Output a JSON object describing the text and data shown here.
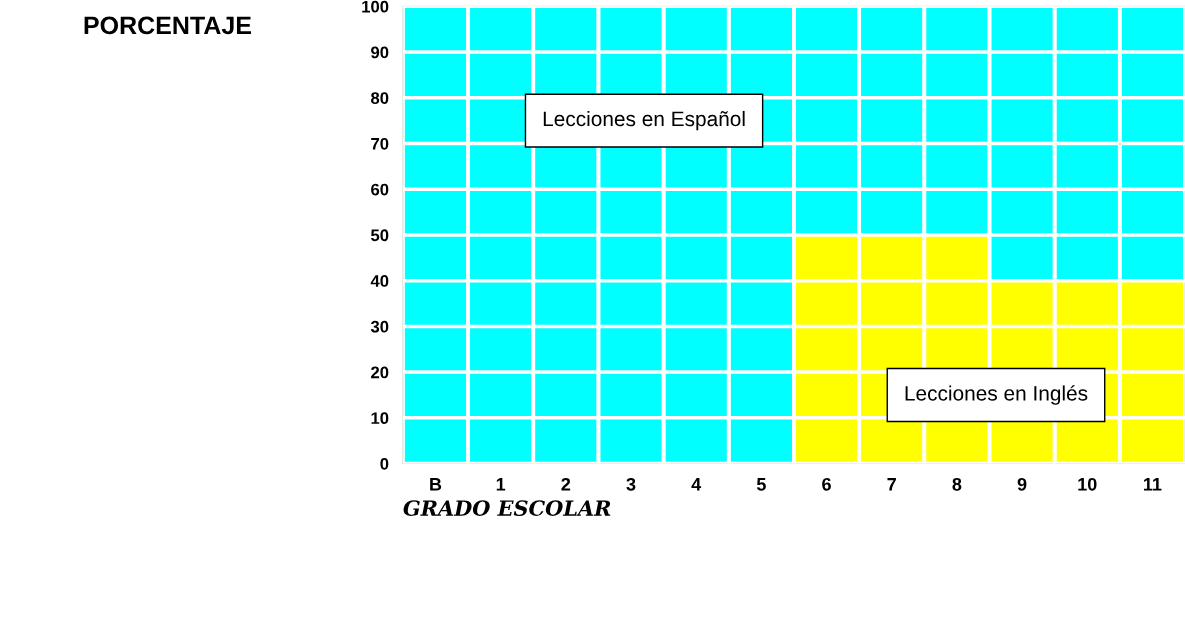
{
  "chart_data": {
    "type": "bar",
    "stacked": true,
    "annotations": [
      "PORCENTAJE"
    ],
    "xlabel": "GRADO ESCOLAR",
    "categories": [
      "B",
      "1",
      "2",
      "3",
      "4",
      "5",
      "6",
      "7",
      "8",
      "9",
      "10",
      "11"
    ],
    "series": [
      {
        "name": "Lecciones en Inglés",
        "color": "#ffff00",
        "values": [
          0,
          0,
          0,
          0,
          0,
          0,
          50,
          50,
          50,
          40,
          40,
          40
        ]
      },
      {
        "name": "Lecciones en Español",
        "color": "#00ffff",
        "values": [
          100,
          100,
          100,
          100,
          100,
          100,
          50,
          50,
          50,
          60,
          60,
          60
        ]
      }
    ],
    "ylim": [
      0,
      100
    ],
    "yticks": [
      0,
      10,
      20,
      30,
      40,
      50,
      60,
      70,
      80,
      90,
      100
    ],
    "grid": true,
    "legend": false
  }
}
